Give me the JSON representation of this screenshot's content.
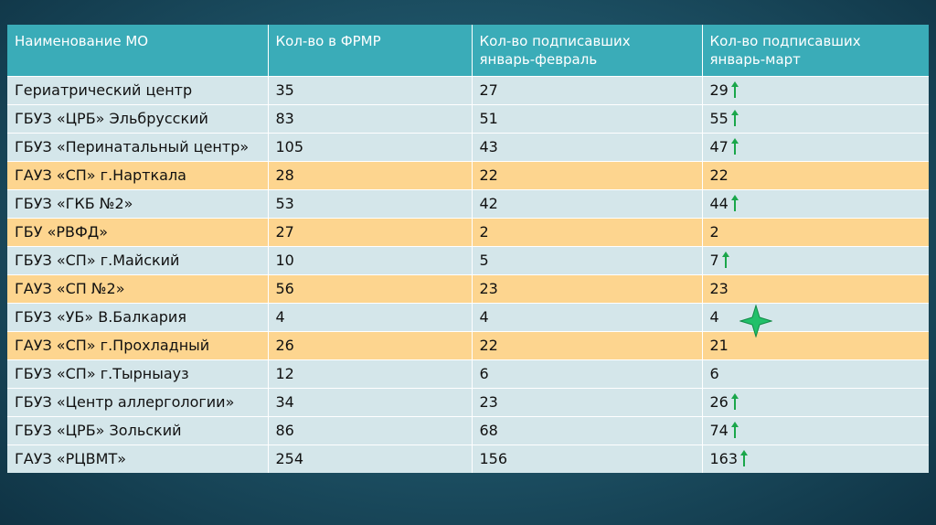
{
  "table": {
    "headers": [
      "Наименование МО",
      "Кол-во в ФРМР",
      "Кол-во подписавших\nянварь-февраль",
      "Кол-во подписавших\nянварь-март"
    ],
    "rows": [
      {
        "name": "Гериатрический центр",
        "frmr": "35",
        "jan_feb": "27",
        "jan_mar": "29",
        "arrow": true,
        "tone": "blue"
      },
      {
        "name": "ГБУЗ «ЦРБ» Эльбрусский",
        "frmr": "83",
        "jan_feb": "51",
        "jan_mar": "55",
        "arrow": true,
        "tone": "blue"
      },
      {
        "name": "ГБУЗ «Перинатальный центр»",
        "frmr": "105",
        "jan_feb": "43",
        "jan_mar": "47",
        "arrow": true,
        "tone": "blue"
      },
      {
        "name": "ГАУЗ «СП» г.Нарткала",
        "frmr": "28",
        "jan_feb": "22",
        "jan_mar": "22",
        "arrow": false,
        "tone": "orange"
      },
      {
        "name": "ГБУЗ «ГКБ №2»",
        "frmr": "53",
        "jan_feb": "42",
        "jan_mar": "44",
        "arrow": true,
        "tone": "blue"
      },
      {
        "name": "ГБУ «РВФД»",
        "frmr": "27",
        "jan_feb": "2",
        "jan_mar": "2",
        "arrow": false,
        "tone": "orange"
      },
      {
        "name": "ГБУЗ «СП» г.Майский",
        "frmr": "10",
        "jan_feb": "5",
        "jan_mar": "7",
        "arrow": true,
        "tone": "blue"
      },
      {
        "name": "ГАУЗ «СП №2»",
        "frmr": "56",
        "jan_feb": "23",
        "jan_mar": "23",
        "arrow": false,
        "tone": "orange"
      },
      {
        "name": "ГБУЗ «УБ» В.Балкария",
        "frmr": "4",
        "jan_feb": "4",
        "jan_mar": "4",
        "arrow": false,
        "tone": "blue"
      },
      {
        "name": "ГАУЗ «СП» г.Прохладный",
        "frmr": "26",
        "jan_feb": "22",
        "jan_mar": "21",
        "arrow": false,
        "tone": "orange"
      },
      {
        "name": "ГБУЗ «СП» г.Тырныауз",
        "frmr": "12",
        "jan_feb": "6",
        "jan_mar": "6",
        "arrow": false,
        "tone": "blue"
      },
      {
        "name": "ГБУЗ «Центр аллергологии»",
        "frmr": "34",
        "jan_feb": "23",
        "jan_mar": "26",
        "arrow": true,
        "tone": "blue"
      },
      {
        "name": "ГБУЗ «ЦРБ» Зольский",
        "frmr": "86",
        "jan_feb": "68",
        "jan_mar": "74",
        "arrow": true,
        "tone": "blue"
      },
      {
        "name": "ГАУЗ «РЦВМТ»",
        "frmr": "254",
        "jan_feb": "156",
        "jan_mar": "163",
        "arrow": true,
        "tone": "blue"
      }
    ]
  },
  "colors": {
    "header": "#3aacb8",
    "row_blue": "#d4e6ea",
    "row_orange": "#fdd58f",
    "arrow": "#1aa64a",
    "star": "#22c06a"
  },
  "decorations": {
    "arrow_icon": "up-arrow-icon",
    "star_icon": "four-point-star-icon"
  }
}
